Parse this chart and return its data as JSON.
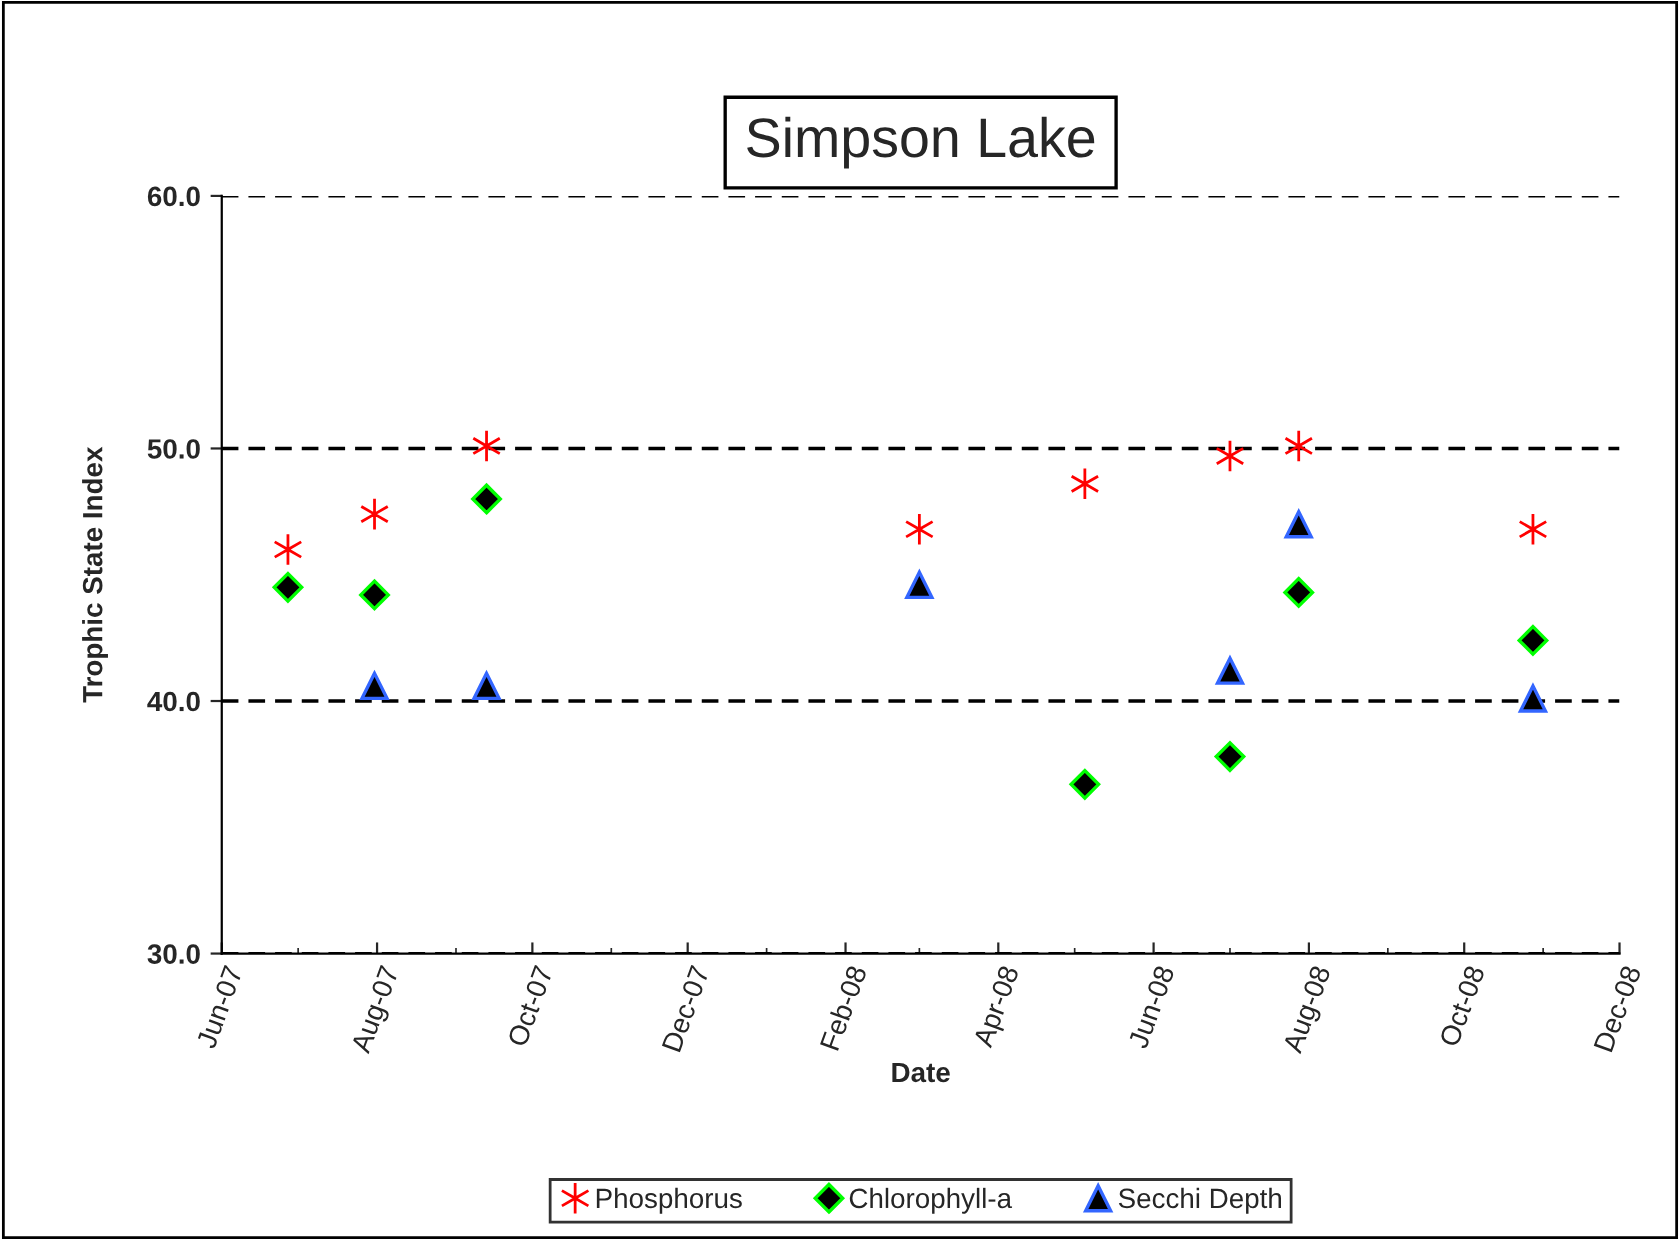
{
  "chart_data": {
    "type": "scatter",
    "title": "Simpson Lake",
    "xlabel": "Date",
    "ylabel": "Trophic State Index",
    "series": [
      {
        "name": "Phosphorus",
        "color": "#ff0000",
        "marker": "cross",
        "x": [
          "2007-06-27",
          "2007-07-31",
          "2007-09-13",
          "2008-03-01",
          "2008-05-05",
          "2008-07-01",
          "2008-07-28",
          "2008-10-28"
        ],
        "values": [
          46.0,
          47.4,
          50.1,
          46.8,
          48.6,
          49.7,
          50.1,
          46.8
        ]
      },
      {
        "name": "Chlorophyll-a",
        "color": "#00ff00",
        "marker": "diamond",
        "x": [
          "2007-06-27",
          "2007-07-31",
          "2007-09-13",
          "2008-05-05",
          "2008-07-01",
          "2008-07-28",
          "2008-10-28"
        ],
        "values": [
          44.5,
          44.2,
          48.0,
          36.7,
          37.8,
          44.3,
          42.4
        ]
      },
      {
        "name": "Secchi Depth",
        "color": "#3366ff",
        "marker": "triangle",
        "x": [
          "2007-07-31",
          "2007-09-13",
          "2008-03-01",
          "2008-07-01",
          "2008-07-28",
          "2008-10-28"
        ],
        "values": [
          40.6,
          40.6,
          44.6,
          41.2,
          47.0,
          40.1
        ]
      }
    ],
    "xlim": [
      "2007-06-01",
      "2008-12-01"
    ],
    "xticks": [
      {
        "value": "2007-06-01",
        "label": "Jun-07"
      },
      {
        "value": "2007-08-01",
        "label": "Aug-07"
      },
      {
        "value": "2007-10-01",
        "label": "Oct-07"
      },
      {
        "value": "2007-12-01",
        "label": "Dec-07"
      },
      {
        "value": "2008-02-01",
        "label": "Feb-08"
      },
      {
        "value": "2008-04-01",
        "label": "Apr-08"
      },
      {
        "value": "2008-06-01",
        "label": "Jun-08"
      },
      {
        "value": "2008-08-01",
        "label": "Aug-08"
      },
      {
        "value": "2008-10-01",
        "label": "Oct-08"
      },
      {
        "value": "2008-12-01",
        "label": "Dec-08"
      }
    ],
    "ylim": [
      30,
      60
    ],
    "yticks": [
      {
        "value": 30,
        "label": "30.0"
      },
      {
        "value": 40,
        "label": "40.0"
      },
      {
        "value": 50,
        "label": "50.0"
      },
      {
        "value": 60,
        "label": "60.0"
      }
    ],
    "grid": "y",
    "legend": "bottom"
  }
}
